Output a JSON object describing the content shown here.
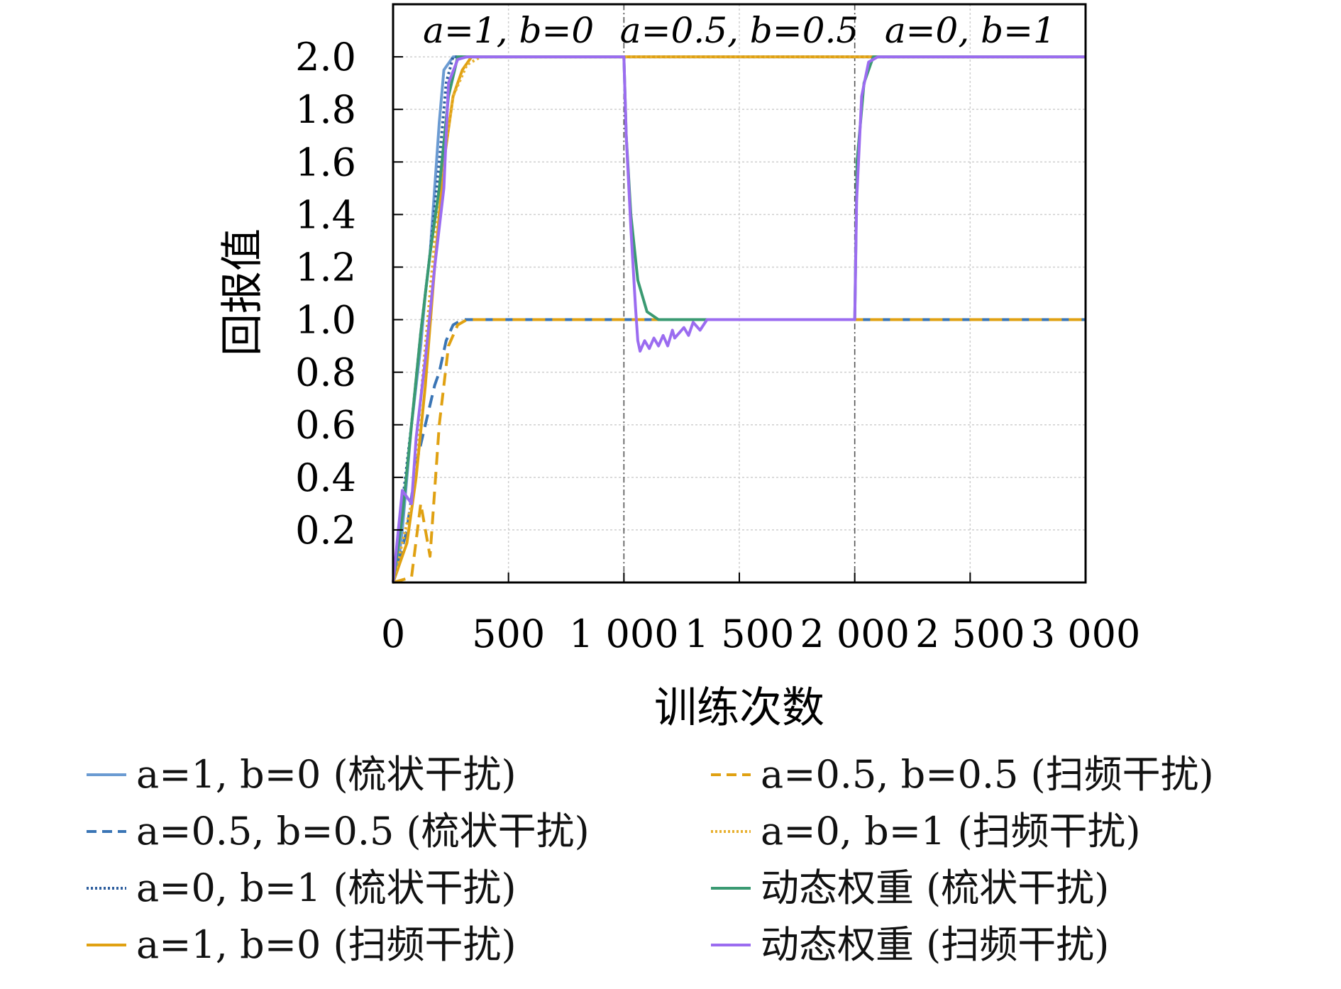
{
  "chart_data": {
    "type": "line",
    "xlabel": "训练次数",
    "ylabel": "回报值",
    "xlim": [
      0,
      3000
    ],
    "ylim": [
      0,
      2.2
    ],
    "xticks": [
      0,
      500,
      1000,
      1500,
      2000,
      2500,
      3000
    ],
    "xtick_labels": [
      "0",
      "500",
      "1 000",
      "1 500",
      "2 000",
      "2 500",
      "3 000"
    ],
    "yticks": [
      0.2,
      0.4,
      0.6,
      0.8,
      1.0,
      1.2,
      1.4,
      1.6,
      1.8,
      2.0
    ],
    "ytick_labels": [
      "0.2",
      "0.4",
      "0.6",
      "0.8",
      "1.0",
      "1.2",
      "1.4",
      "1.6",
      "1.8",
      "2.0"
    ],
    "grid": true,
    "phase_boundaries": [
      1000,
      2000
    ],
    "phase_labels": [
      "a=1, b=0",
      "a=0.5, b=0.5",
      "a=0, b=1"
    ],
    "legend_position": "below",
    "series": [
      {
        "name": "a=1, b=0 (梳状干扰)",
        "color": "#6b9bd2",
        "style": "solid",
        "points": [
          [
            0,
            0
          ],
          [
            20,
            0.05
          ],
          [
            40,
            0.2
          ],
          [
            60,
            0.4
          ],
          [
            80,
            0.6
          ],
          [
            100,
            0.75
          ],
          [
            120,
            0.9
          ],
          [
            140,
            1.1
          ],
          [
            160,
            1.25
          ],
          [
            180,
            1.5
          ],
          [
            200,
            1.75
          ],
          [
            220,
            1.95
          ],
          [
            260,
            2.0
          ],
          [
            3000,
            2.0
          ]
        ]
      },
      {
        "name": "a=0.5, b=0.5 (梳状干扰)",
        "color": "#3a75b5",
        "style": "dashed",
        "points": [
          [
            0,
            0
          ],
          [
            60,
            0.2
          ],
          [
            100,
            0.45
          ],
          [
            140,
            0.6
          ],
          [
            180,
            0.75
          ],
          [
            200,
            0.8
          ],
          [
            230,
            0.92
          ],
          [
            260,
            0.98
          ],
          [
            300,
            1.0
          ],
          [
            3000,
            1.0
          ]
        ]
      },
      {
        "name": "a=0, b=1 (梳状干扰)",
        "color": "#2f5f9e",
        "style": "dotted",
        "points": [
          [
            0,
            0
          ],
          [
            40,
            0.3
          ],
          [
            80,
            0.6
          ],
          [
            120,
            0.95
          ],
          [
            160,
            1.25
          ],
          [
            200,
            1.6
          ],
          [
            230,
            1.9
          ],
          [
            260,
            2.0
          ],
          [
            3000,
            2.0
          ]
        ]
      },
      {
        "name": "a=1, b=0 (扫频干扰)",
        "color": "#e0a112",
        "style": "solid",
        "points": [
          [
            0,
            0
          ],
          [
            60,
            0.15
          ],
          [
            100,
            0.4
          ],
          [
            140,
            0.75
          ],
          [
            180,
            1.2
          ],
          [
            220,
            1.6
          ],
          [
            260,
            1.85
          ],
          [
            300,
            1.95
          ],
          [
            340,
            2.0
          ],
          [
            3000,
            2.0
          ]
        ]
      },
      {
        "name": "a=0.5, b=0.5 (扫频干扰)",
        "color": "#e0a112",
        "style": "dashed",
        "points": [
          [
            0,
            0
          ],
          [
            80,
            0.02
          ],
          [
            120,
            0.3
          ],
          [
            160,
            0.1
          ],
          [
            200,
            0.6
          ],
          [
            240,
            0.9
          ],
          [
            280,
            0.98
          ],
          [
            320,
            1.0
          ],
          [
            3000,
            1.0
          ]
        ]
      },
      {
        "name": "a=0, b=1 (扫频干扰)",
        "color": "#e8b030",
        "style": "dotted",
        "points": [
          [
            0,
            0
          ],
          [
            80,
            0.3
          ],
          [
            140,
            0.9
          ],
          [
            200,
            1.5
          ],
          [
            260,
            1.85
          ],
          [
            320,
            1.97
          ],
          [
            380,
            2.0
          ],
          [
            3000,
            2.0
          ]
        ]
      },
      {
        "name": "动态权重 (梳状干扰)",
        "color": "#3a9a72",
        "style": "solid",
        "points": [
          [
            0,
            0
          ],
          [
            40,
            0.25
          ],
          [
            80,
            0.6
          ],
          [
            120,
            0.95
          ],
          [
            160,
            1.25
          ],
          [
            200,
            1.5
          ],
          [
            240,
            1.85
          ],
          [
            280,
            2.0
          ],
          [
            1000,
            2.0
          ],
          [
            1010,
            1.7
          ],
          [
            1030,
            1.4
          ],
          [
            1060,
            1.15
          ],
          [
            1100,
            1.03
          ],
          [
            1150,
            1.0
          ],
          [
            2000,
            1.0
          ],
          [
            2010,
            1.6
          ],
          [
            2040,
            1.9
          ],
          [
            2080,
            2.0
          ],
          [
            3000,
            2.0
          ]
        ]
      },
      {
        "name": "动态权重 (扫频干扰)",
        "color": "#9b6cf0",
        "style": "solid",
        "points": [
          [
            0,
            0
          ],
          [
            40,
            0.35
          ],
          [
            80,
            0.3
          ],
          [
            100,
            0.55
          ],
          [
            140,
            0.85
          ],
          [
            180,
            1.2
          ],
          [
            220,
            1.5
          ],
          [
            240,
            1.9
          ],
          [
            280,
            1.99
          ],
          [
            320,
            2.0
          ],
          [
            1000,
            2.0
          ],
          [
            1010,
            1.7
          ],
          [
            1030,
            1.35
          ],
          [
            1050,
            1.05
          ],
          [
            1060,
            0.92
          ],
          [
            1070,
            0.88
          ],
          [
            1090,
            0.92
          ],
          [
            1110,
            0.89
          ],
          [
            1130,
            0.93
          ],
          [
            1150,
            0.9
          ],
          [
            1170,
            0.94
          ],
          [
            1190,
            0.9
          ],
          [
            1210,
            0.96
          ],
          [
            1220,
            0.93
          ],
          [
            1260,
            0.97
          ],
          [
            1280,
            0.94
          ],
          [
            1300,
            0.99
          ],
          [
            1330,
            0.96
          ],
          [
            1360,
            1.0
          ],
          [
            2000,
            1.0
          ],
          [
            2008,
            1.45
          ],
          [
            2030,
            1.85
          ],
          [
            2060,
            1.98
          ],
          [
            2100,
            2.0
          ],
          [
            3000,
            2.0
          ]
        ]
      }
    ]
  }
}
